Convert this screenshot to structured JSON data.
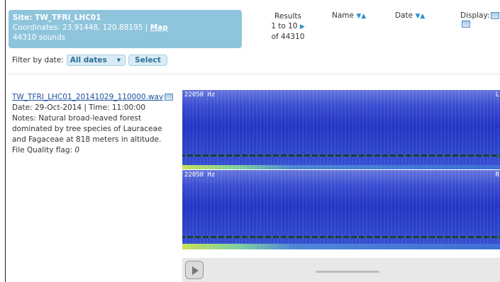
{
  "site": {
    "title": "Site: TW_TFRI_LHC01",
    "coordinates_label": "Coordinates: 23.91448, 120.88195 |",
    "map_link": "Map",
    "sounds": "44310 sounds"
  },
  "filter": {
    "label": "Filter by date:",
    "selected": "All dates",
    "button": "Select"
  },
  "results": {
    "label": "Results",
    "range": "1 to 10",
    "total": "of 44310"
  },
  "sort": {
    "name_label": "Name",
    "date_label": "Date",
    "display_label": "Display:"
  },
  "file": {
    "name": "TW_TFRI_LHC01_20141029_110000.wav",
    "date_time": "Date: 29-Oct-2014 | Time: 11:00:00",
    "notes": "Notes: Natural broad-leaved forest dominated by tree species of Lauraceae and Fagaceae at 818 meters in altitude.",
    "quality_label": "File Quality flag:",
    "quality_value": "0"
  },
  "spectrograms": [
    {
      "freq_label": "22050 Hz",
      "channel": "L"
    },
    {
      "freq_label": "22050 Hz",
      "channel": "R"
    }
  ],
  "player": {
    "play_icon": "play-icon"
  },
  "colors": {
    "site_box": "#8fc5dc",
    "link": "#1b4f9c",
    "accent": "#2d8fd0"
  }
}
